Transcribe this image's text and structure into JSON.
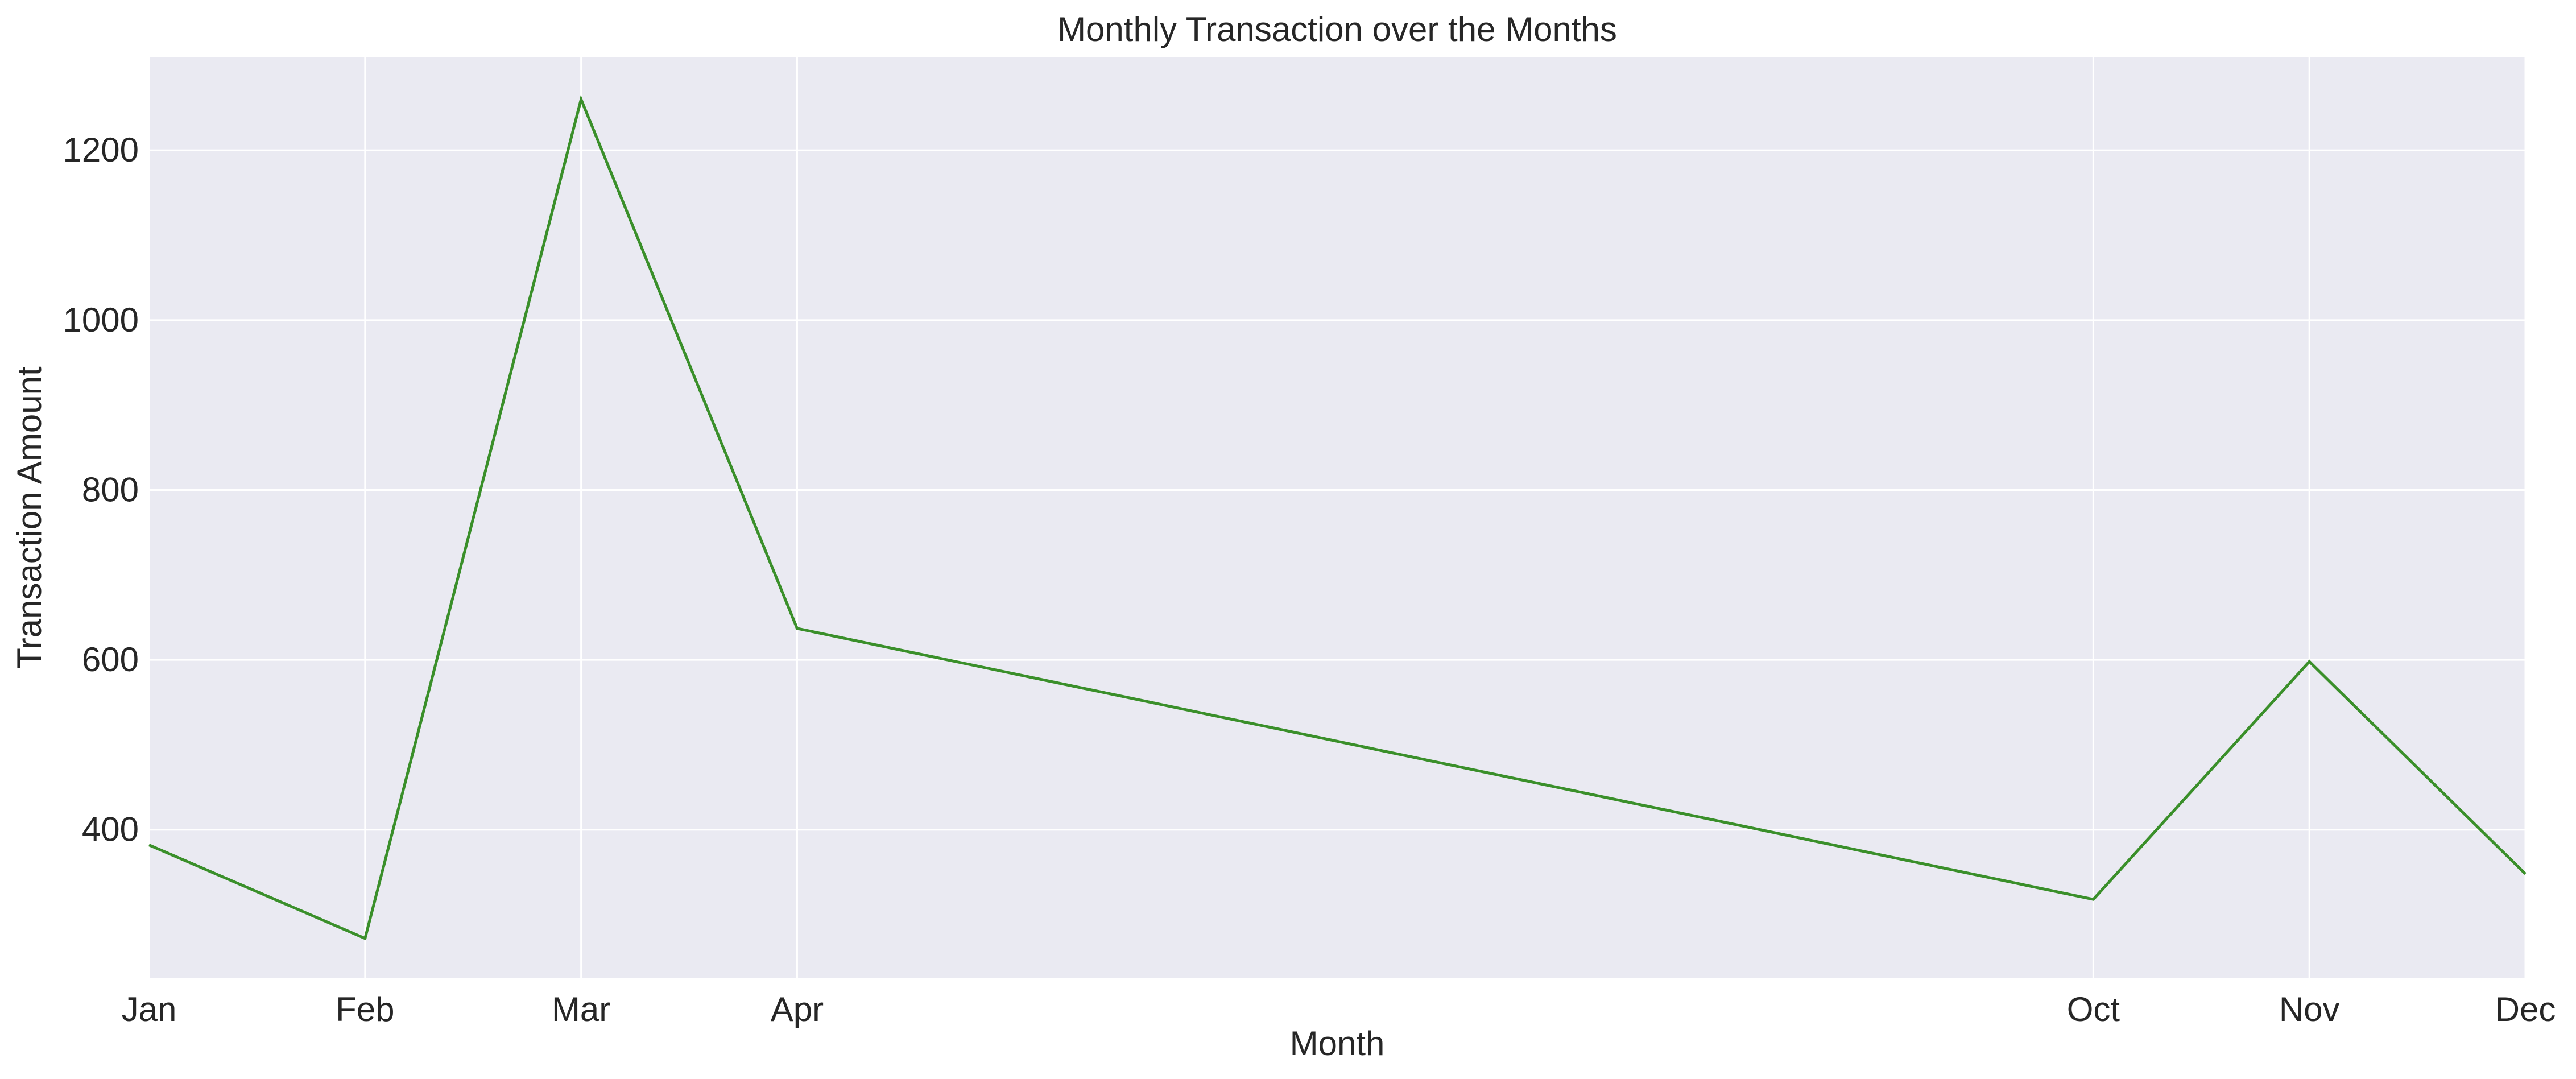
{
  "chart_data": {
    "type": "line",
    "title": "Monthly Transaction over the Months",
    "xlabel": "Month",
    "ylabel": "Transaction Amount",
    "x": [
      "Jan",
      "Feb",
      "Mar",
      "Apr",
      "Oct",
      "Nov",
      "Dec"
    ],
    "x_month_index": [
      1,
      2,
      3,
      4,
      10,
      11,
      12
    ],
    "series": [
      {
        "values": [
          382,
          272,
          1260,
          637,
          318,
          598,
          348
        ]
      }
    ],
    "xlim": [
      1,
      12
    ],
    "ylim": [
      225,
      1310
    ],
    "yticks": [
      400,
      600,
      800,
      1000,
      1200
    ],
    "grid": true,
    "colors": {
      "line": "#3a8f2a",
      "plot_background": "#eaeaf2",
      "grid": "#ffffff",
      "text": "#262626"
    }
  }
}
